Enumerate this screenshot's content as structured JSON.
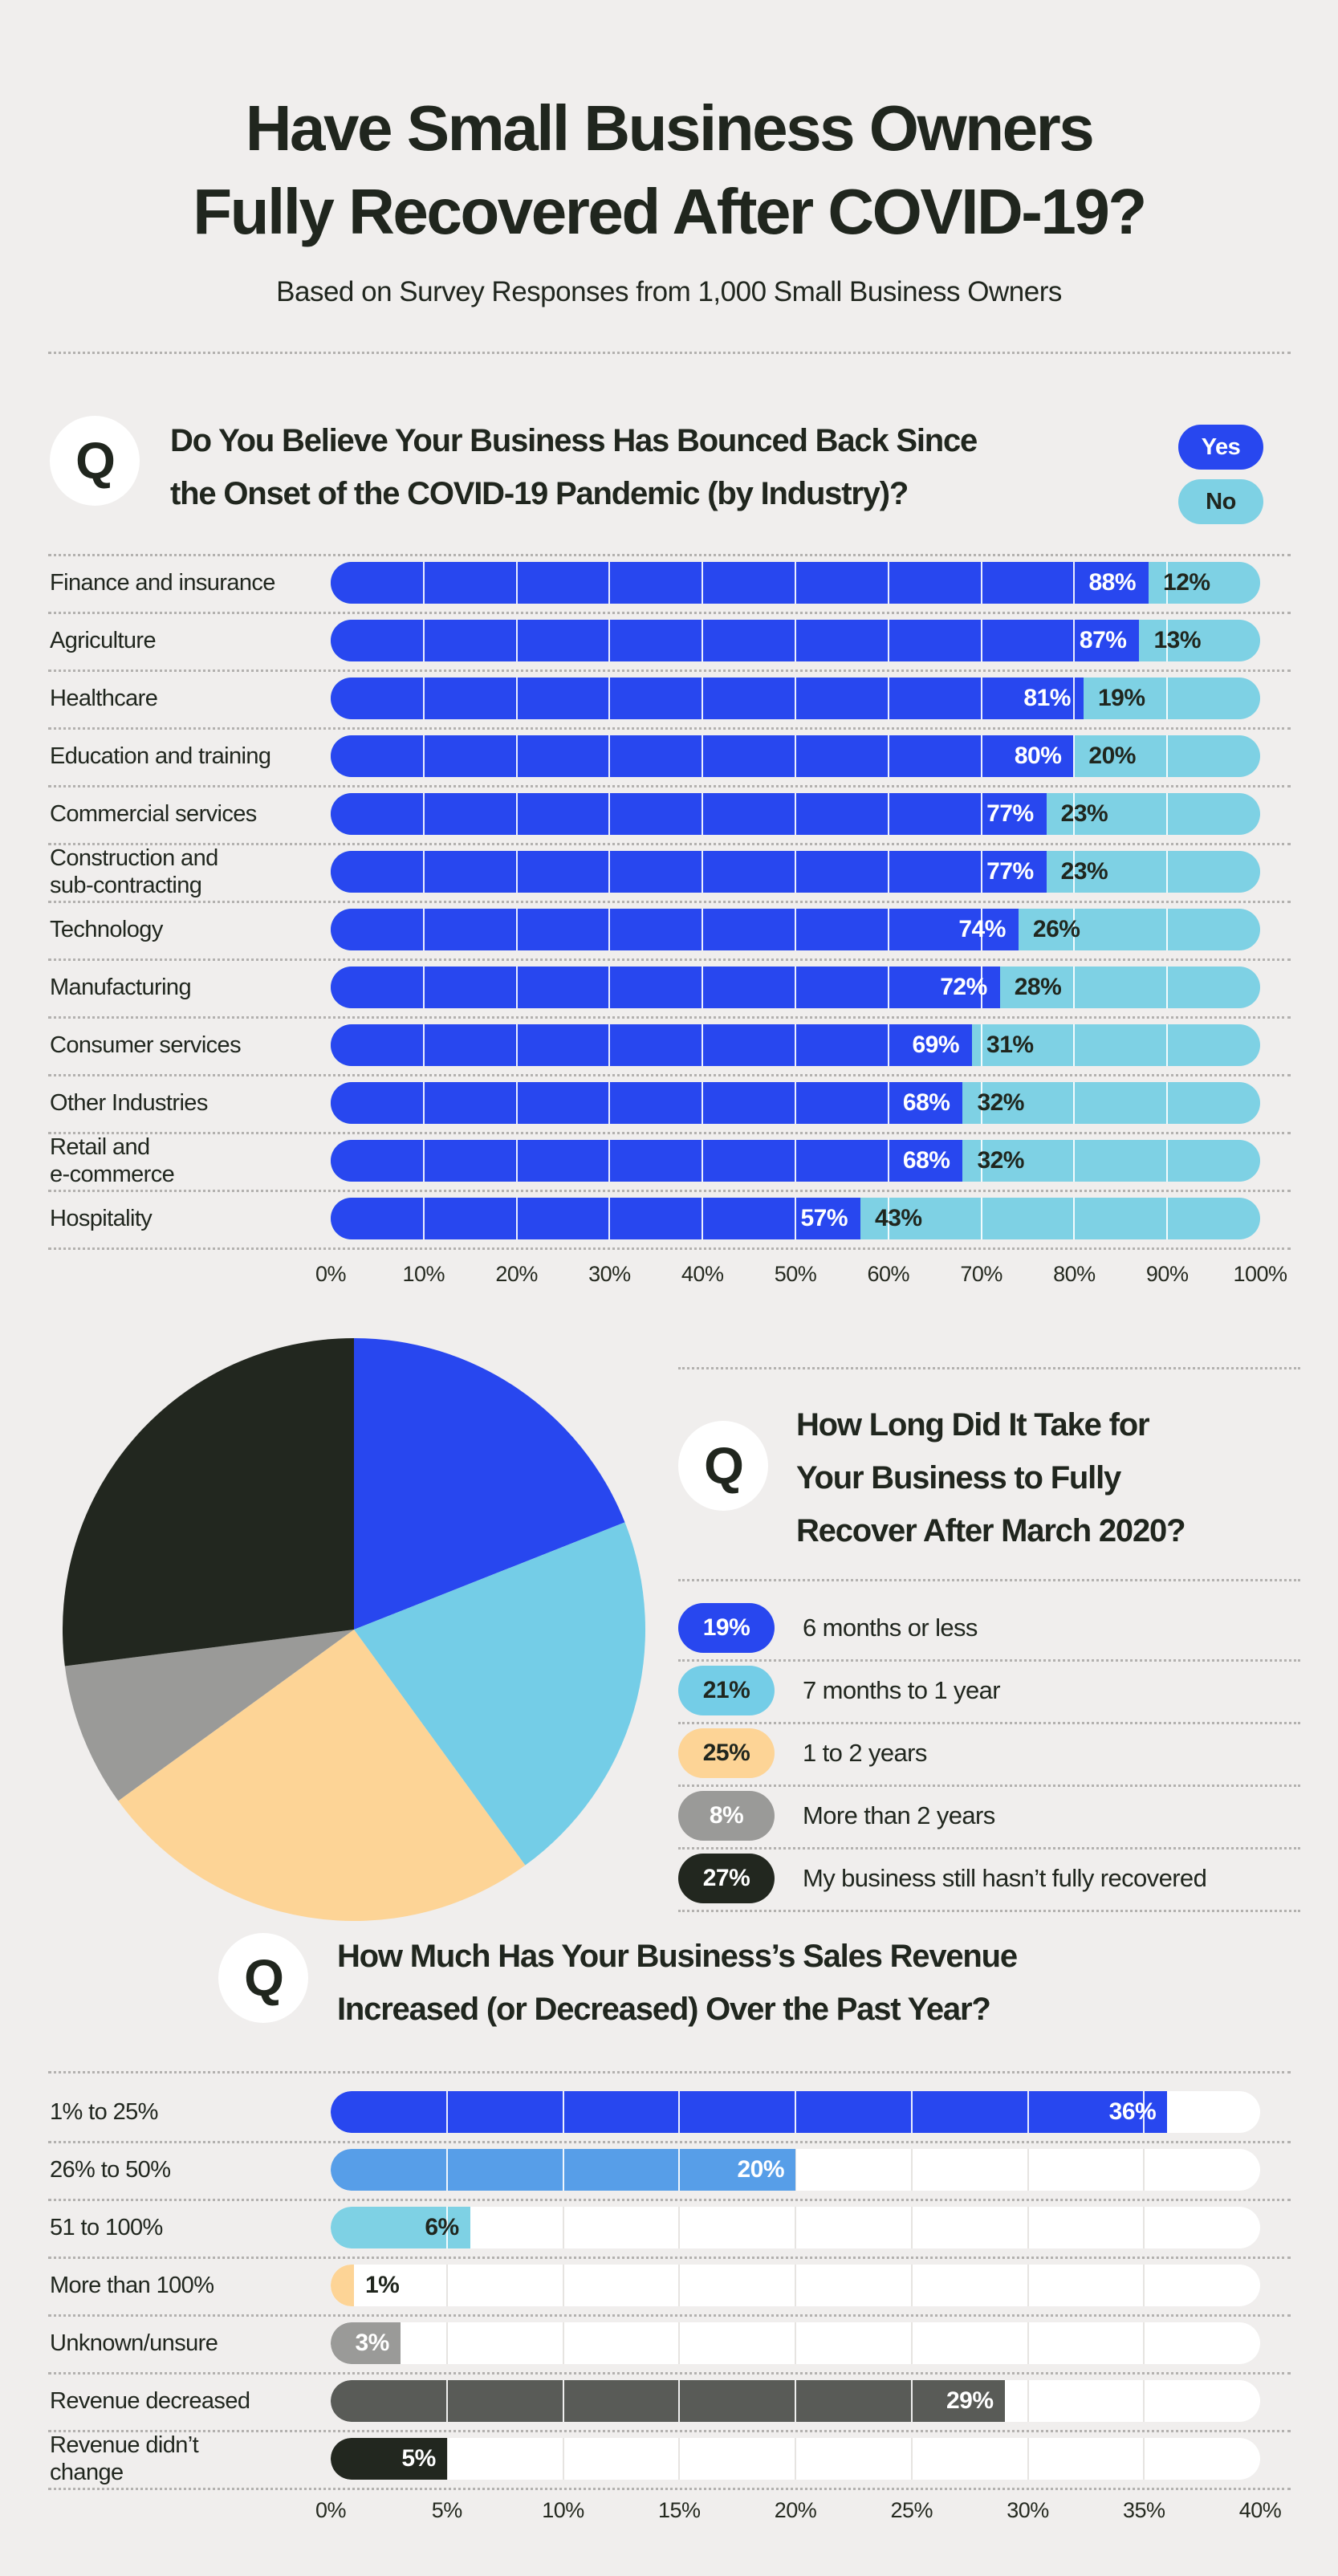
{
  "title": {
    "line1": "Have Small Business Owners",
    "line2": "Fully Recovered After COVID-19?",
    "subtitle": "Based on Survey Responses from 1,000 Small Business Owners"
  },
  "q_mark": "Q",
  "questions": {
    "q1": {
      "line1": "Do You Believe Your Business Has Bounced Back Since",
      "line2": "the Onset of the COVID-19 Pandemic (by Industry)?",
      "legend": [
        {
          "label": "Yes",
          "color": "#2847ef",
          "text_color": "#ffffff"
        },
        {
          "label": "No",
          "color": "#7ed1e4",
          "text_color": "#20261e"
        }
      ]
    },
    "q2": {
      "line1": "How Long Did It Take for",
      "line2": "Your Business to Fully",
      "line3": "Recover After March 2020?"
    },
    "q3": {
      "line1": "How Much Has Your Business’s Sales Revenue",
      "line2": "Increased (or Decreased) Over the Past Year?"
    }
  },
  "colors": {
    "background": "#f0eeed",
    "text": "#20261e",
    "divider": "#b3b1af",
    "track_white": "#ffffff",
    "track_gridline": "#e6e4e1",
    "bar_gridline": "#ffffff"
  },
  "chart_data": [
    {
      "type": "bar",
      "orientation": "horizontal",
      "stacked": true,
      "title": "Do You Believe Your Business Has Bounced Back Since the Onset of the COVID-19 Pandemic (by Industry)?",
      "categories": [
        "Finance and insurance",
        "Agriculture",
        "Healthcare",
        "Education and training",
        "Commercial services",
        "Construction and\nsub-contracting",
        "Technology",
        "Manufacturing",
        "Consumer services",
        "Other Industries",
        "Retail and\ne-commerce",
        "Hospitality"
      ],
      "series": [
        {
          "name": "Yes",
          "color": "#2847ef",
          "label_color": "#ffffff",
          "values": [
            88,
            87,
            81,
            80,
            77,
            77,
            74,
            72,
            69,
            68,
            68,
            57
          ]
        },
        {
          "name": "No",
          "color": "#7ed1e4",
          "label_color": "#20261e",
          "values": [
            12,
            13,
            19,
            20,
            23,
            23,
            26,
            28,
            31,
            32,
            32,
            43
          ]
        }
      ],
      "xlim": [
        0,
        100
      ],
      "x_ticks": [
        "0%",
        "10%",
        "20%",
        "30%",
        "40%",
        "50%",
        "60%",
        "70%",
        "80%",
        "90%",
        "100%"
      ],
      "grid": true,
      "legend_position": "top-right"
    },
    {
      "type": "pie",
      "title": "How Long Did It Take for Your Business to Fully Recover After March 2020?",
      "labels": [
        "6 months or less",
        "7 months to 1 year",
        "1 to 2 years",
        "More than 2 years",
        "My business still hasn’t fully recovered"
      ],
      "values": [
        19,
        21,
        25,
        8,
        27
      ],
      "value_labels": [
        "19%",
        "21%",
        "25%",
        "8%",
        "27%"
      ],
      "colors": [
        "#2847ef",
        "#74cde7",
        "#fdd496",
        "#9a9a98",
        "#22271f"
      ],
      "swatch_text_colors": [
        "#ffffff",
        "#20261e",
        "#20261e",
        "#ffffff",
        "#ffffff"
      ],
      "start_angle": "12-oclock",
      "direction": "clockwise",
      "legend_position": "right"
    },
    {
      "type": "bar",
      "orientation": "horizontal",
      "stacked": false,
      "title": "How Much Has Your Business’s Sales Revenue Increased (or Decreased) Over the Past Year?",
      "categories": [
        "1% to 25%",
        "26% to 50%",
        "51 to 100%",
        "More than 100%",
        "Unknown/unsure",
        "Revenue decreased",
        "Revenue didn’t\nchange"
      ],
      "values": [
        36,
        20,
        6,
        1,
        3,
        29,
        5
      ],
      "value_labels": [
        "36%",
        "20%",
        "6%",
        "1%",
        "3%",
        "29%",
        "5%"
      ],
      "bar_colors": [
        "#2847ef",
        "#579ee8",
        "#7ed1e4",
        "#fdd496",
        "#9a9a98",
        "#595b57",
        "#22271f"
      ],
      "label_inside": [
        true,
        true,
        true,
        false,
        true,
        true,
        true
      ],
      "label_colors": [
        "#ffffff",
        "#ffffff",
        "#20261e",
        "#20261e",
        "#ffffff",
        "#ffffff",
        "#ffffff"
      ],
      "xlim": [
        0,
        40
      ],
      "x_ticks": [
        "0%",
        "5%",
        "10%",
        "15%",
        "20%",
        "25%",
        "30%",
        "35%",
        "40%"
      ],
      "grid": true
    }
  ]
}
